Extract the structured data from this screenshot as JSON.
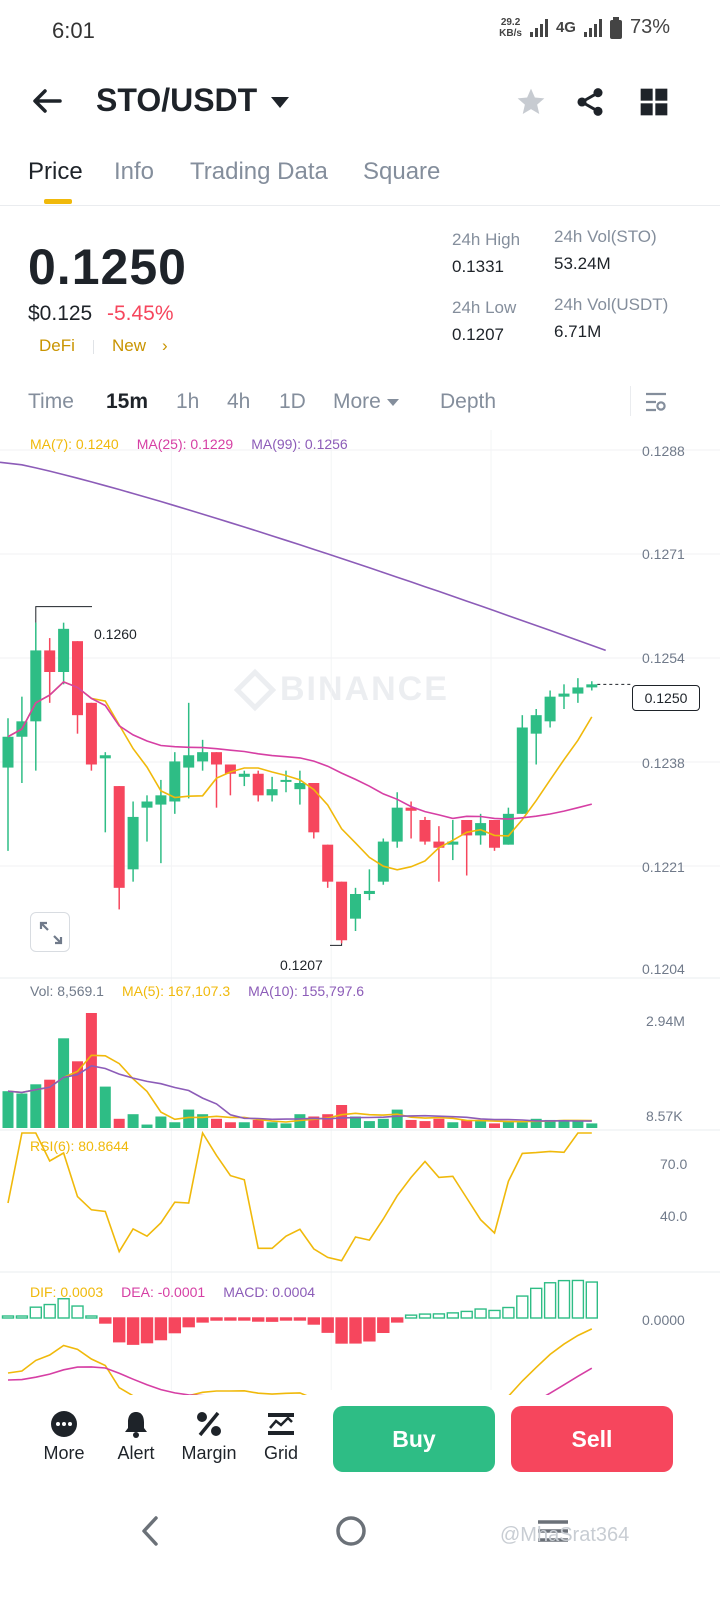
{
  "status_bar": {
    "time": "6:01",
    "speed_value": "29.2",
    "speed_unit": "KB/s",
    "network": "4G",
    "battery": "73%"
  },
  "header": {
    "pair": "STO/USDT",
    "icons": [
      "back-arrow-icon",
      "caret-down-icon",
      "star-icon",
      "share-icon",
      "grid-icon"
    ]
  },
  "tabs": [
    "Price",
    "Info",
    "Trading Data",
    "Square"
  ],
  "price": {
    "last": "0.1250",
    "usd": "$0.125",
    "change": "-5.45%",
    "tag1": "DeFi",
    "tag2": "New",
    "tag2_arrow": "›"
  },
  "stats": {
    "high_label": "24h High",
    "high": "0.1331",
    "low_label": "24h Low",
    "low": "0.1207",
    "vol_sto_label": "24h Vol(STO)",
    "vol_sto": "53.24M",
    "vol_usdt_label": "24h Vol(USDT)",
    "vol_usdt": "6.71M"
  },
  "intervals": {
    "time": "Time",
    "m15": "15m",
    "h1": "1h",
    "h4": "4h",
    "d1": "1D",
    "more": "More",
    "depth": "Depth"
  },
  "ma_legend": {
    "ma7": "MA(7): 0.1240",
    "ma25": "MA(25): 0.1229",
    "ma99": "MA(99): 0.1256"
  },
  "vol_legend": {
    "vol": "Vol: 8,569.1",
    "ma5": "MA(5): 167,107.3",
    "ma10": "MA(10): 155,797.6"
  },
  "rsi_legend": "RSI(6): 80.8644",
  "macd_legend": {
    "dif": "DIF: 0.0003",
    "dea": "DEA: -0.0001",
    "macd": "MACD: 0.0004"
  },
  "annotations": {
    "high": "0.1260",
    "low": "0.1207",
    "current": "0.1250",
    "watermark": "BINANCE"
  },
  "price_axis": [
    "0.1288",
    "0.1271",
    "0.1254",
    "0.1238",
    "0.1221",
    "0.1204"
  ],
  "vol_axis": [
    "2.94M",
    "8.57K"
  ],
  "rsi_axis": [
    "70.0",
    "40.0"
  ],
  "macd_axis": "0.0000",
  "colors": {
    "up": "#2ebd85",
    "down": "#f6465d",
    "ma7": "#f0b90b",
    "ma25": "#d63fa4",
    "ma99": "#8c5cb8",
    "accent": "#f0b90b"
  },
  "chart_data": {
    "type": "candlestick",
    "interval": "15m",
    "ylim": [
      0.1204,
      0.1288
    ],
    "candles": [
      {
        "o": 0.12365,
        "h": 0.12445,
        "l": 0.1223,
        "c": 0.12415
      },
      {
        "o": 0.12415,
        "h": 0.1248,
        "l": 0.1234,
        "c": 0.1244
      },
      {
        "o": 0.1244,
        "h": 0.126,
        "l": 0.1236,
        "c": 0.12555
      },
      {
        "o": 0.12555,
        "h": 0.12575,
        "l": 0.1247,
        "c": 0.1252
      },
      {
        "o": 0.1252,
        "h": 0.126,
        "l": 0.125,
        "c": 0.1259
      },
      {
        "o": 0.1257,
        "h": 0.1257,
        "l": 0.1242,
        "c": 0.1245
      },
      {
        "o": 0.1247,
        "h": 0.1247,
        "l": 0.1236,
        "c": 0.1237
      },
      {
        "o": 0.1238,
        "h": 0.1239,
        "l": 0.1226,
        "c": 0.12385
      },
      {
        "o": 0.12335,
        "h": 0.12335,
        "l": 0.12135,
        "c": 0.1217
      },
      {
        "o": 0.122,
        "h": 0.1231,
        "l": 0.1218,
        "c": 0.12285
      },
      {
        "o": 0.123,
        "h": 0.1232,
        "l": 0.12245,
        "c": 0.1231
      },
      {
        "o": 0.12305,
        "h": 0.12345,
        "l": 0.1221,
        "c": 0.1232
      },
      {
        "o": 0.1231,
        "h": 0.1239,
        "l": 0.1229,
        "c": 0.12375
      },
      {
        "o": 0.12365,
        "h": 0.1247,
        "l": 0.12315,
        "c": 0.12385
      },
      {
        "o": 0.12375,
        "h": 0.1241,
        "l": 0.1236,
        "c": 0.1239
      },
      {
        "o": 0.1239,
        "h": 0.1239,
        "l": 0.123,
        "c": 0.1237
      },
      {
        "o": 0.1237,
        "h": 0.1237,
        "l": 0.1232,
        "c": 0.12355
      },
      {
        "o": 0.1235,
        "h": 0.1236,
        "l": 0.12335,
        "c": 0.12355
      },
      {
        "o": 0.12355,
        "h": 0.1236,
        "l": 0.1231,
        "c": 0.1232
      },
      {
        "o": 0.1232,
        "h": 0.1235,
        "l": 0.1231,
        "c": 0.1233
      },
      {
        "o": 0.12345,
        "h": 0.1236,
        "l": 0.12325,
        "c": 0.12345
      },
      {
        "o": 0.1233,
        "h": 0.1236,
        "l": 0.12305,
        "c": 0.1234
      },
      {
        "o": 0.1234,
        "h": 0.1234,
        "l": 0.1225,
        "c": 0.1226
      },
      {
        "o": 0.1224,
        "h": 0.1224,
        "l": 0.1217,
        "c": 0.1218
      },
      {
        "o": 0.1218,
        "h": 0.1218,
        "l": 0.1208,
        "c": 0.12085
      },
      {
        "o": 0.1212,
        "h": 0.1217,
        "l": 0.121,
        "c": 0.1216
      },
      {
        "o": 0.1216,
        "h": 0.122,
        "l": 0.1215,
        "c": 0.12165
      },
      {
        "o": 0.1218,
        "h": 0.1225,
        "l": 0.12175,
        "c": 0.12245
      },
      {
        "o": 0.12245,
        "h": 0.12325,
        "l": 0.12235,
        "c": 0.123
      },
      {
        "o": 0.123,
        "h": 0.1231,
        "l": 0.1225,
        "c": 0.12295
      },
      {
        "o": 0.1228,
        "h": 0.12285,
        "l": 0.1224,
        "c": 0.12245
      },
      {
        "o": 0.12245,
        "h": 0.1227,
        "l": 0.1218,
        "c": 0.12235
      },
      {
        "o": 0.1224,
        "h": 0.1228,
        "l": 0.12215,
        "c": 0.12245
      },
      {
        "o": 0.1228,
        "h": 0.1228,
        "l": 0.1219,
        "c": 0.12255
      },
      {
        "o": 0.12255,
        "h": 0.1229,
        "l": 0.1224,
        "c": 0.12275
      },
      {
        "o": 0.1228,
        "h": 0.1228,
        "l": 0.1223,
        "c": 0.12235
      },
      {
        "o": 0.1224,
        "h": 0.123,
        "l": 0.1224,
        "c": 0.1229
      },
      {
        "o": 0.1229,
        "h": 0.1245,
        "l": 0.1229,
        "c": 0.1243
      },
      {
        "o": 0.1242,
        "h": 0.1246,
        "l": 0.1237,
        "c": 0.1245
      },
      {
        "o": 0.1244,
        "h": 0.1249,
        "l": 0.1243,
        "c": 0.1248
      },
      {
        "o": 0.1248,
        "h": 0.125,
        "l": 0.1246,
        "c": 0.12485
      },
      {
        "o": 0.12485,
        "h": 0.1251,
        "l": 0.1247,
        "c": 0.12495
      },
      {
        "o": 0.12495,
        "h": 0.12505,
        "l": 0.1249,
        "c": 0.125
      }
    ],
    "volume": [
      0.32,
      0.3,
      0.38,
      0.42,
      0.78,
      0.58,
      1.0,
      0.36,
      0.08,
      0.12,
      0.03,
      0.1,
      0.05,
      0.16,
      0.12,
      0.08,
      0.05,
      0.05,
      0.07,
      0.05,
      0.04,
      0.12,
      0.1,
      0.12,
      0.2,
      0.1,
      0.06,
      0.08,
      0.16,
      0.07,
      0.06,
      0.08,
      0.05,
      0.07,
      0.06,
      0.04,
      0.06,
      0.05,
      0.08,
      0.07,
      0.07,
      0.06,
      0.04
    ]
  },
  "bottom_bar": {
    "more": "More",
    "alert": "Alert",
    "margin": "Margin",
    "grid": "Grid",
    "buy": "Buy",
    "sell": "Sell"
  },
  "credit": "@MhaSrat364"
}
